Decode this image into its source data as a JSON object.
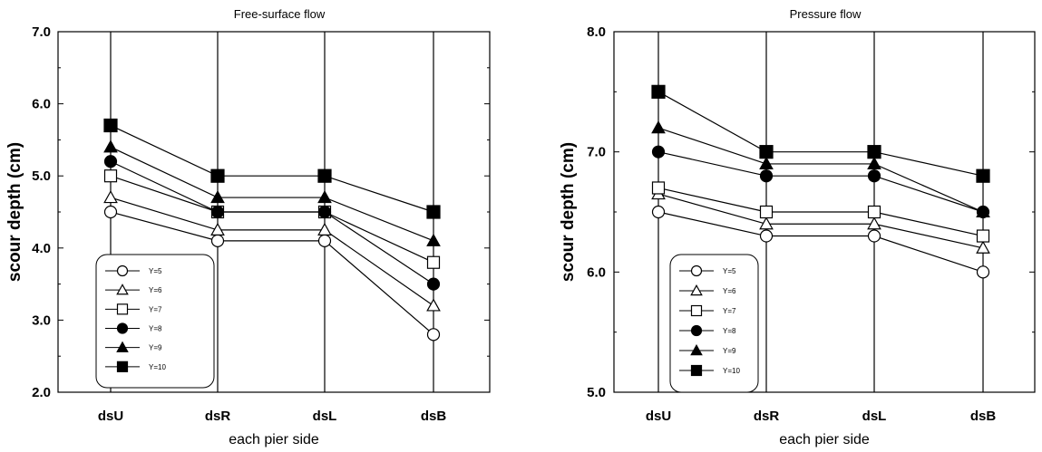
{
  "chart_data": [
    {
      "type": "line",
      "title": "Free-surface flow",
      "xlabel": "each pier side",
      "ylabel": "scour depth (cm)",
      "categories": [
        "dsU",
        "dsR",
        "dsL",
        "dsB"
      ],
      "ylim": [
        2.0,
        7.0
      ],
      "yticks": [
        "2.0",
        "3.0",
        "4.0",
        "5.0",
        "6.0",
        "7.0"
      ],
      "grid": "vertical lines at categories",
      "legend_position": "bottom-left",
      "series": [
        {
          "name": "Y=5",
          "marker": "circle-open",
          "values": [
            4.5,
            4.1,
            4.1,
            2.8
          ]
        },
        {
          "name": "Y=6",
          "marker": "triangle-open",
          "values": [
            4.7,
            4.25,
            4.25,
            3.2
          ]
        },
        {
          "name": "Y=7",
          "marker": "square-open",
          "values": [
            5.0,
            4.5,
            4.5,
            3.8
          ]
        },
        {
          "name": "Y=8",
          "marker": "circle-filled",
          "values": [
            5.2,
            4.5,
            4.5,
            3.5
          ]
        },
        {
          "name": "Y=9",
          "marker": "triangle-filled",
          "values": [
            5.4,
            4.7,
            4.7,
            4.1
          ]
        },
        {
          "name": "Y=10",
          "marker": "square-filled",
          "values": [
            5.7,
            5.0,
            5.0,
            4.5
          ]
        }
      ]
    },
    {
      "type": "line",
      "title": "Pressure flow",
      "xlabel": "each pier side",
      "ylabel": "scour depth (cm)",
      "categories": [
        "dsU",
        "dsR",
        "dsL",
        "dsB"
      ],
      "ylim": [
        5.0,
        8.0
      ],
      "yticks": [
        "5.0",
        "6.0",
        "7.0",
        "8.0"
      ],
      "grid": "vertical lines at categories",
      "legend_position": "bottom-left",
      "series": [
        {
          "name": "Y=5",
          "marker": "circle-open",
          "values": [
            6.5,
            6.3,
            6.3,
            6.0
          ]
        },
        {
          "name": "Y=6",
          "marker": "triangle-open",
          "values": [
            6.65,
            6.4,
            6.4,
            6.2
          ]
        },
        {
          "name": "Y=7",
          "marker": "square-open",
          "values": [
            6.7,
            6.5,
            6.5,
            6.3
          ]
        },
        {
          "name": "Y=8",
          "marker": "circle-filled",
          "values": [
            7.0,
            6.8,
            6.8,
            6.5
          ]
        },
        {
          "name": "Y=9",
          "marker": "triangle-filled",
          "values": [
            7.2,
            6.9,
            6.9,
            6.5
          ]
        },
        {
          "name": "Y=10",
          "marker": "square-filled",
          "values": [
            7.5,
            7.0,
            7.0,
            6.8
          ]
        }
      ]
    }
  ]
}
